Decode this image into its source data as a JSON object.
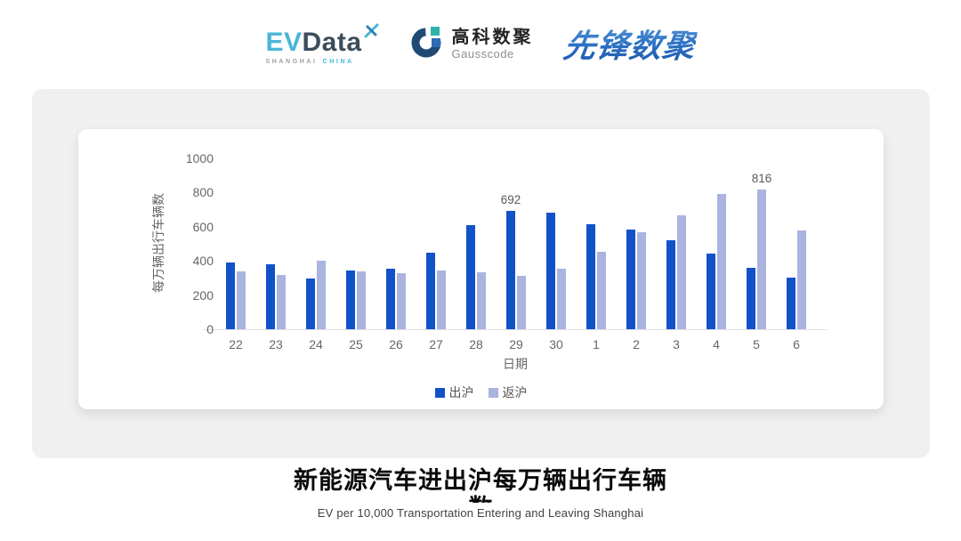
{
  "header": {
    "evdata_logo": {
      "ev": "EV",
      "data": "Data",
      "sub_left": "SHANGHAI",
      "sub_right": "CHINA"
    },
    "gausscode_logo": {
      "cn": "高科数聚",
      "en": "Gausscode"
    },
    "pioneer_logo": {
      "text": "先锋数聚"
    }
  },
  "colors": {
    "series_out": "#1152c9",
    "series_return": "#aab4df",
    "evdata_cyan": "#49b6d8",
    "evdata_slate": "#3b4d5c",
    "gauss_navy": "#1e4a74",
    "gauss_teal": "#2cb4ab",
    "gauss_blue": "#2e6db6",
    "pioneer_blue": "#2a6fc3",
    "panel_gray": "#f0f0f0"
  },
  "chart_data": {
    "type": "bar",
    "title": "",
    "categories": [
      "22",
      "23",
      "24",
      "25",
      "26",
      "27",
      "28",
      "29",
      "30",
      "1",
      "2",
      "3",
      "4",
      "5",
      "6"
    ],
    "series": [
      {
        "name": "出沪",
        "color": "#1152c9",
        "values": [
          390,
          380,
          295,
          345,
          355,
          450,
          608,
          692,
          682,
          612,
          585,
          520,
          445,
          358,
          300
        ]
      },
      {
        "name": "返沪",
        "color": "#aab4df",
        "values": [
          340,
          318,
          400,
          337,
          328,
          343,
          333,
          312,
          354,
          455,
          567,
          665,
          790,
          816,
          580
        ]
      }
    ],
    "annotations": [
      {
        "series_index": 0,
        "category_index": 7,
        "text": "692"
      },
      {
        "series_index": 1,
        "category_index": 13,
        "text": "816"
      }
    ],
    "ylabel": "每万辆出行车辆数",
    "xlabel": "日期",
    "yticks": [
      0,
      200,
      400,
      600,
      800,
      1000
    ],
    "ylim": [
      0,
      1000
    ],
    "grid": false,
    "legend_position": "bottom"
  },
  "footer": {
    "title_line1": "新能源汽车进出沪每万辆出行车辆",
    "title_clipped": "数",
    "subtitle": "EV per 10,000 Transportation Entering and Leaving Shanghai"
  }
}
